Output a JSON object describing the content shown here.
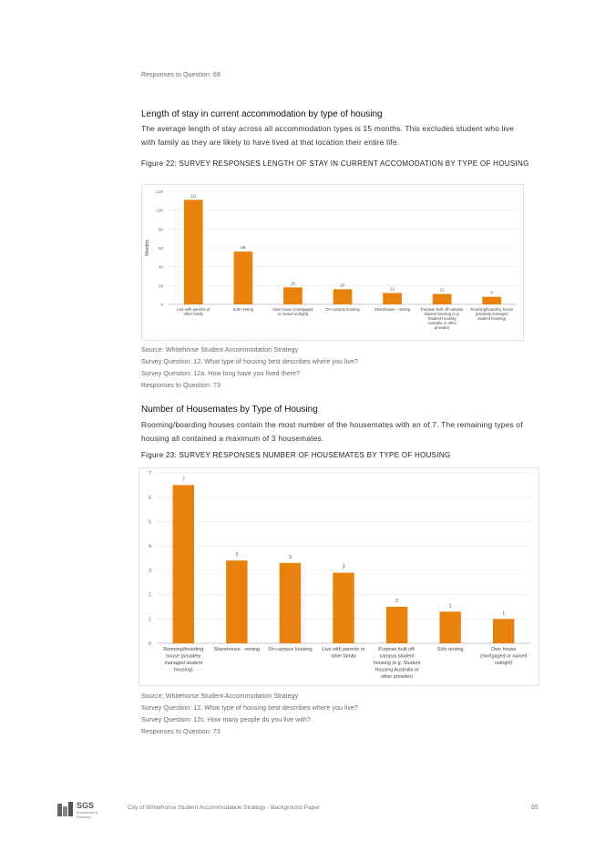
{
  "top_note": "Responses to Question: 69",
  "section1": {
    "heading": "Length of stay in current accommodation by type of housing",
    "para": "The average length of stay across all accommodation types is 15 months. This excludes student who live with family as they are likely to have lived at that location their entire life.",
    "figure_caption": "Figure 22: SURVEY RESPONSES LENGTH OF STAY IN CURRENT ACCOMODATION BY TYPE OF HOUSING",
    "notes": [
      "Source: Whitehorse Student Accommodation Strategy",
      "Survey Question: 12. What type of housing best describes where you live?",
      "Survey Question: 12a. How long have you lived there?",
      "Responses to Question: 73"
    ]
  },
  "section2": {
    "heading": "Number of Housemates by Type of Housing",
    "para": "Rooming/boarding houses contain the most number of the housemates with an of 7. The remaining types of housing all contained a maximum of 3 housemates.",
    "figure_caption": "Figure 23: SURVEY RESPONSES NUMBER OF HOUSEMATES BY TYPE OF HOUSING",
    "notes": [
      "Source: Whitehorse Student Accommodation Strategy",
      "Survey Question: 12. What type of housing best describes where you live?",
      "Survey Question: 12c. How many people do you live with?",
      "Responses to Question: 73"
    ]
  },
  "footer": {
    "logo_text": "SGS",
    "logo_sub": "Economics & Planning",
    "title": "City of Whitehorse Student Accommodation Strategy - Background Paper",
    "page": "65"
  },
  "chart_data": [
    {
      "type": "bar",
      "color": "#e8820c",
      "ylabel": "Months",
      "xlabel": "",
      "ylim": [
        0,
        120
      ],
      "yticks": [
        "0",
        "20",
        "40",
        "60",
        "80",
        "100",
        "120"
      ],
      "categories": [
        [
          "Live with parents or",
          "other family"
        ],
        [
          "Solo renting"
        ],
        [
          "Own house (mortgaged",
          "or owned outright)"
        ],
        [
          "On-campus housing"
        ],
        [
          "Sharehouse - renting"
        ],
        [
          "Purpose built off-campus",
          "student housing (e.g.",
          "Student Housing",
          "Australia or other",
          "provider)"
        ],
        [
          "Rooming/boarding house",
          "(privately managed",
          "student housing)"
        ]
      ],
      "values": [
        111,
        56,
        18,
        16,
        12,
        11,
        8
      ],
      "labels": [
        "111",
        "56",
        "18",
        "16",
        "12",
        "11",
        "8"
      ]
    },
    {
      "type": "bar",
      "color": "#e8820c",
      "ylabel": "",
      "xlabel": "",
      "ylim": [
        0,
        7
      ],
      "yticks": [
        "0",
        "1",
        "2",
        "3",
        "4",
        "5",
        "6",
        "7"
      ],
      "categories": [
        [
          "Rooming/boarding",
          "house (privately",
          "managed student",
          "housing)"
        ],
        [
          "Sharehouse - renting"
        ],
        [
          "On-campus housing"
        ],
        [
          "Live with parents or",
          "other family"
        ],
        [
          "Purpose built off-",
          "campus student",
          "housing (e.g. Student",
          "Housing Australia or",
          "other provider)"
        ],
        [
          "Solo renting"
        ],
        [
          "Own house",
          "(mortgaged or owned",
          "outright)"
        ]
      ],
      "values": [
        6.5,
        3.4,
        3.3,
        2.9,
        1.5,
        1.3,
        1.0
      ],
      "labels": [
        "7",
        "3",
        "3",
        "3",
        "2",
        "1",
        "1"
      ]
    }
  ]
}
